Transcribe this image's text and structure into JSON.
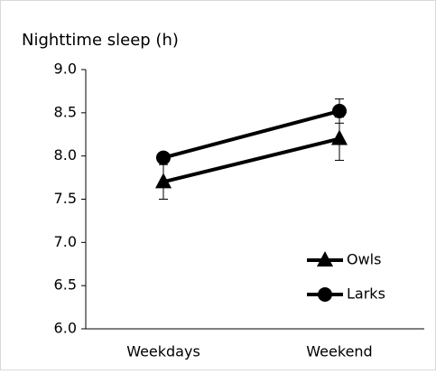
{
  "chart_data": {
    "type": "line",
    "y_label": "Nighttime sleep (h)",
    "categories": [
      "Weekdays",
      "Weekend"
    ],
    "series": [
      {
        "name": "Owls",
        "color": "#000000",
        "marker": "triangle",
        "values": [
          7.7,
          8.2
        ],
        "errors": [
          0.2,
          0.25
        ]
      },
      {
        "name": "Larks",
        "color": "#000000",
        "marker": "circle",
        "values": [
          7.98,
          8.52
        ],
        "errors": [
          0.05,
          0.14
        ]
      }
    ],
    "ylim": [
      6,
      9
    ],
    "yticks": [
      {
        "value": 6,
        "label": "6.0"
      },
      {
        "value": 6.5,
        "label": "6.5"
      },
      {
        "value": 7,
        "label": "7.0"
      },
      {
        "value": 7.5,
        "label": "7.5"
      },
      {
        "value": 8,
        "label": "8.0"
      },
      {
        "value": 8.5,
        "label": "8.5"
      },
      {
        "value": 9,
        "label": "9.0"
      }
    ],
    "grid": false,
    "legend": "lower right"
  }
}
